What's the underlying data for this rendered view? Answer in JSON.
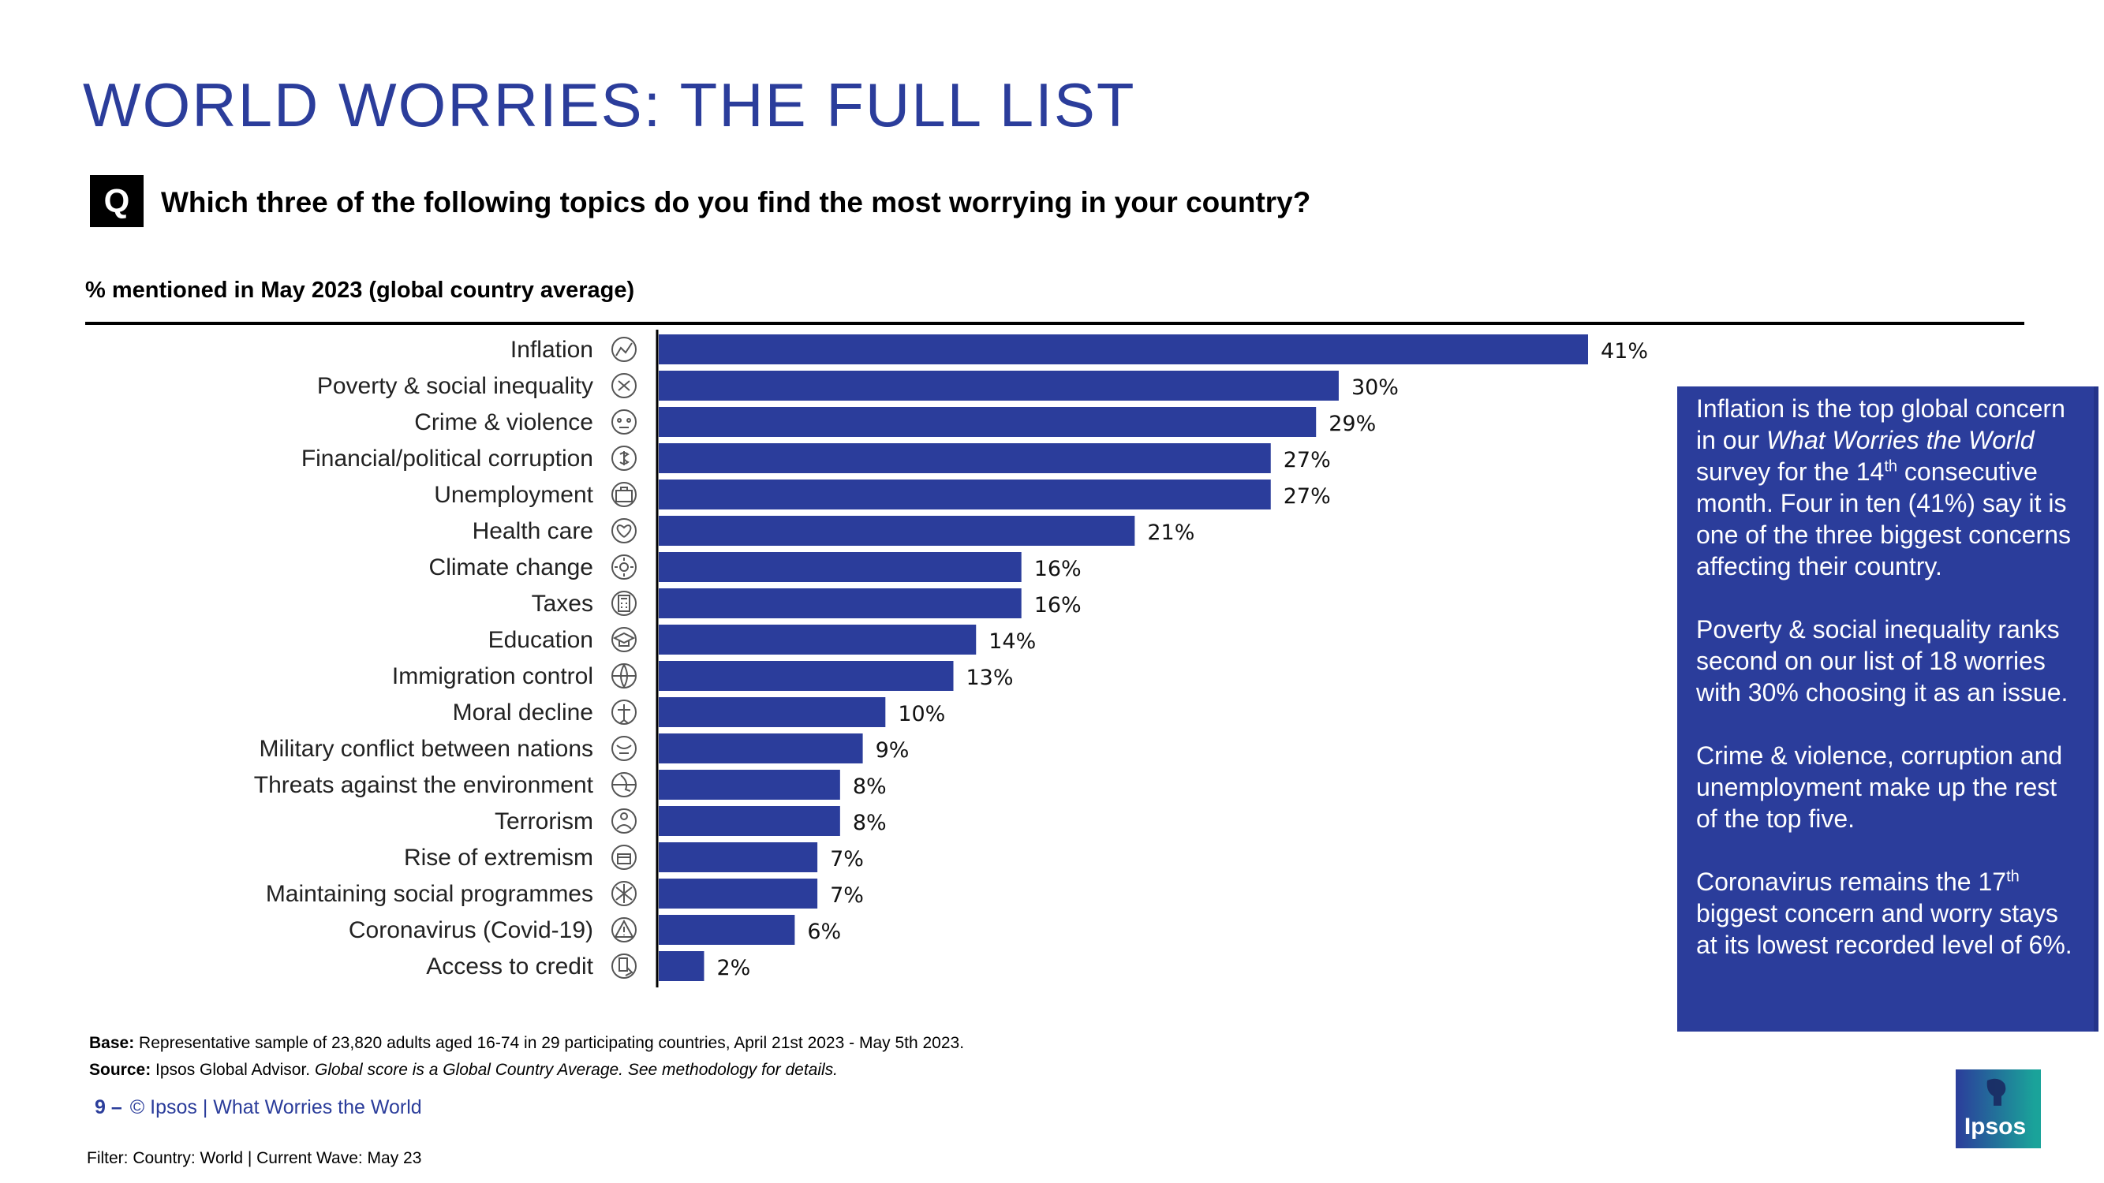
{
  "title": "WORLD WORRIES: THE FULL LIST",
  "question": {
    "badge": "Q",
    "text": "Which three of the following topics do you find the most worrying in your country?"
  },
  "subtitle": "% mentioned in May 2023 (global country average)",
  "colors": {
    "accent": "#2b3d9b",
    "bar": "#2b3d9b",
    "logo_teal": "#1aa39a"
  },
  "chart_data": {
    "type": "bar",
    "orientation": "horizontal",
    "title": "% mentioned in May 2023 (global country average)",
    "xlabel": "",
    "ylabel": "",
    "xlim": [
      0,
      41
    ],
    "value_suffix": "%",
    "categories": [
      "Inflation",
      "Poverty & social inequality",
      "Crime & violence",
      "Financial/political corruption",
      "Unemployment",
      "Health care",
      "Climate change",
      "Taxes",
      "Education",
      "Immigration control",
      "Moral decline",
      "Military conflict between nations",
      "Threats against the environment",
      "Terrorism",
      "Rise of extremism",
      "Maintaining social programmes",
      "Coronavirus (Covid-19)",
      "Access to credit"
    ],
    "values": [
      41,
      30,
      29,
      27,
      27,
      21,
      16,
      16,
      14,
      13,
      10,
      9,
      8,
      8,
      7,
      7,
      6,
      2
    ],
    "icons": [
      "chart-line-icon",
      "money-bag-icon",
      "skull-crossbones-icon",
      "head-dollar-icon",
      "briefcase-icon",
      "heart-hand-icon",
      "sun-icon",
      "calculator-icon",
      "graduation-cap-icon",
      "globe-icon",
      "figure-icon",
      "globe-conflict-icon",
      "globe-leaf-icon",
      "person-icon",
      "fist-icon",
      "people-icon",
      "warning-icon",
      "card-hand-icon"
    ]
  },
  "callout": {
    "p1_a": "Inflation is the top global concern in our ",
    "p1_italic": "What Worries the World",
    "p1_b": " survey for the 14",
    "p1_sup": "th",
    "p1_c": " consecutive month. Four in ten (41%) say it is one of the three biggest concerns affecting their country.",
    "p2": "Poverty & social inequality ranks second on our list of 18 worries with 30% choosing it as an issue.",
    "p3": "Crime & violence, corruption and unemployment make up the rest of the top five.",
    "p4_a": "Coronavirus remains the 17",
    "p4_sup": "th",
    "p4_b": " biggest concern and worry stays at its lowest recorded level of 6%."
  },
  "base": {
    "label": "Base:",
    "text": "Representative sample of 23,820 adults aged 16-74 in 29 participating countries, April 21st 2023 - May 5th 2023."
  },
  "source": {
    "label": "Source:",
    "text": "Ipsos Global Advisor. ",
    "italic": "Global score is a Global Country Average. See methodology for details."
  },
  "page": {
    "number": "9 –",
    "text": "© Ipsos | What Worries the World"
  },
  "filter": "Filter: Country: World | Current Wave: May 23",
  "logo": {
    "text": "Ipsos"
  }
}
